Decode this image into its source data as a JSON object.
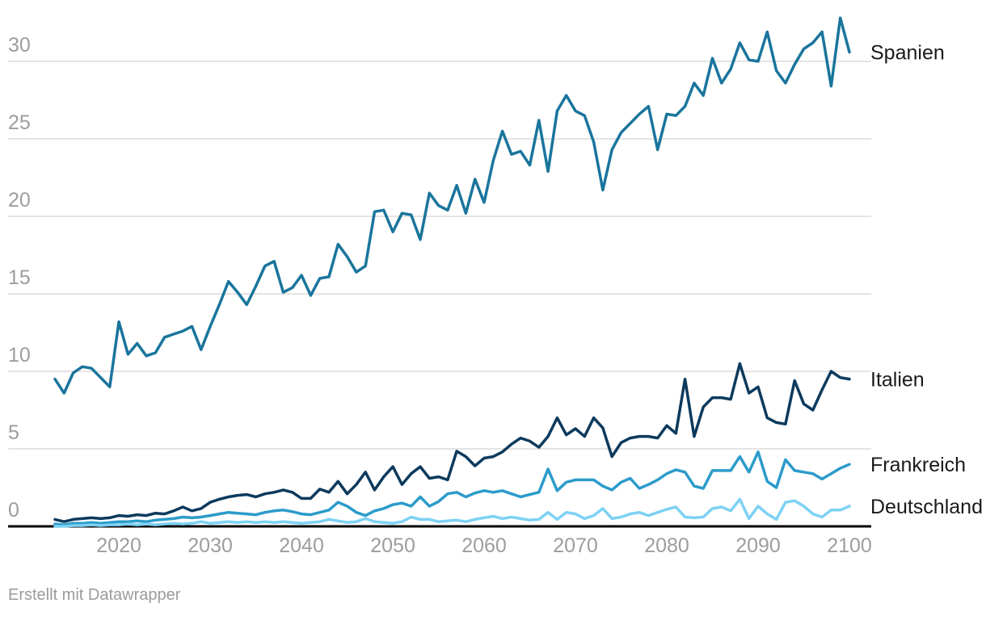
{
  "page": {
    "background": "#ffffff"
  },
  "footer": {
    "text": "Erstellt mit Datawrapper"
  },
  "axes": {
    "y_ticks": [
      0,
      5,
      10,
      15,
      20,
      25,
      30
    ],
    "x_ticks": [
      2020,
      2030,
      2040,
      2050,
      2060,
      2070,
      2080,
      2090,
      2100
    ],
    "tick_color": "#9d9d9d",
    "grid_color": "#e4e4e4",
    "baseline_color": "#000000",
    "series_label_color": "#1a1a1a"
  },
  "chart_data": {
    "type": "line",
    "title": "",
    "xlabel": "",
    "ylabel": "",
    "grid": "horizontal",
    "legend_position": "right-edge-direct-labels",
    "xlim": [
      2013,
      2100
    ],
    "ylim": [
      0,
      33.5
    ],
    "x": [
      2013,
      2014,
      2015,
      2016,
      2017,
      2018,
      2019,
      2020,
      2021,
      2022,
      2023,
      2024,
      2025,
      2026,
      2027,
      2028,
      2029,
      2030,
      2031,
      2032,
      2033,
      2034,
      2035,
      2036,
      2037,
      2038,
      2039,
      2040,
      2041,
      2042,
      2043,
      2044,
      2045,
      2046,
      2047,
      2048,
      2049,
      2050,
      2051,
      2052,
      2053,
      2054,
      2055,
      2056,
      2057,
      2058,
      2059,
      2060,
      2061,
      2062,
      2063,
      2064,
      2065,
      2066,
      2067,
      2068,
      2069,
      2070,
      2071,
      2072,
      2073,
      2074,
      2075,
      2076,
      2077,
      2078,
      2079,
      2080,
      2081,
      2082,
      2083,
      2084,
      2085,
      2086,
      2087,
      2088,
      2089,
      2090,
      2091,
      2092,
      2093,
      2094,
      2095,
      2096,
      2097,
      2098,
      2099,
      2100
    ],
    "series": [
      {
        "name": "Spanien",
        "color": "#1a759c",
        "values": [
          9.5,
          8.6,
          9.9,
          10.3,
          10.2,
          9.6,
          9.0,
          13.2,
          11.1,
          11.8,
          11.0,
          11.2,
          12.2,
          12.4,
          12.6,
          12.9,
          11.4,
          12.9,
          14.3,
          15.8,
          15.1,
          14.3,
          15.5,
          16.8,
          17.1,
          15.1,
          15.4,
          16.2,
          14.9,
          16.0,
          16.1,
          18.2,
          17.4,
          16.4,
          16.8,
          20.3,
          20.4,
          19.0,
          20.2,
          20.1,
          18.5,
          21.5,
          20.7,
          20.4,
          22.0,
          20.2,
          22.4,
          20.9,
          23.6,
          25.5,
          24.0,
          24.2,
          23.3,
          26.2,
          22.9,
          26.8,
          27.8,
          26.8,
          26.5,
          24.8,
          21.7,
          24.3,
          25.4,
          26.0,
          26.6,
          27.1,
          24.3,
          26.6,
          26.5,
          27.1,
          28.6,
          27.8,
          30.2,
          28.6,
          29.5,
          31.2,
          30.1,
          30.0,
          31.9,
          29.4,
          28.6,
          29.8,
          30.8,
          31.2,
          31.9,
          28.4,
          32.8,
          30.6
        ]
      },
      {
        "name": "Italien",
        "color": "#0c3a5d",
        "values": [
          0.45,
          0.3,
          0.45,
          0.5,
          0.55,
          0.5,
          0.55,
          0.7,
          0.65,
          0.75,
          0.7,
          0.85,
          0.8,
          1.0,
          1.25,
          1.0,
          1.15,
          1.55,
          1.75,
          1.9,
          2.0,
          2.05,
          1.9,
          2.1,
          2.2,
          2.35,
          2.2,
          1.8,
          1.8,
          2.4,
          2.2,
          2.9,
          2.1,
          2.7,
          3.5,
          2.35,
          3.2,
          3.85,
          2.7,
          3.4,
          3.85,
          3.1,
          3.2,
          3.0,
          4.85,
          4.5,
          3.9,
          4.4,
          4.5,
          4.8,
          5.3,
          5.7,
          5.5,
          5.1,
          5.8,
          7.0,
          5.9,
          6.3,
          5.8,
          7.0,
          6.35,
          4.5,
          5.4,
          5.7,
          5.8,
          5.8,
          5.7,
          6.5,
          6.0,
          9.5,
          5.8,
          7.7,
          8.3,
          8.3,
          8.2,
          10.5,
          8.6,
          9.0,
          7.0,
          6.7,
          6.6,
          9.4,
          7.9,
          7.5,
          8.8,
          10.0,
          9.6,
          9.5
        ]
      },
      {
        "name": "Frankreich",
        "color": "#2b9bca",
        "values": [
          0.15,
          0.1,
          0.2,
          0.2,
          0.25,
          0.2,
          0.25,
          0.3,
          0.3,
          0.35,
          0.3,
          0.4,
          0.45,
          0.5,
          0.6,
          0.55,
          0.6,
          0.7,
          0.8,
          0.9,
          0.85,
          0.8,
          0.75,
          0.9,
          1.0,
          1.05,
          0.95,
          0.8,
          0.75,
          0.9,
          1.05,
          1.55,
          1.3,
          0.9,
          0.7,
          1.0,
          1.15,
          1.4,
          1.5,
          1.3,
          1.9,
          1.3,
          1.6,
          2.1,
          2.2,
          1.9,
          2.15,
          2.3,
          2.2,
          2.3,
          2.1,
          1.9,
          2.05,
          2.2,
          3.7,
          2.3,
          2.85,
          3.0,
          3.0,
          3.0,
          2.6,
          2.35,
          2.85,
          3.1,
          2.45,
          2.7,
          3.0,
          3.4,
          3.65,
          3.5,
          2.6,
          2.45,
          3.6,
          3.6,
          3.6,
          4.5,
          3.5,
          4.8,
          2.9,
          2.5,
          4.3,
          3.6,
          3.5,
          3.4,
          3.05,
          3.4,
          3.75,
          4.0
        ]
      },
      {
        "name": "Deutschland",
        "color": "#7dd1f4",
        "values": [
          0.0,
          0.0,
          0.05,
          0.05,
          0.1,
          0.05,
          0.1,
          0.1,
          0.15,
          0.1,
          0.15,
          0.1,
          0.15,
          0.2,
          0.15,
          0.2,
          0.3,
          0.2,
          0.25,
          0.3,
          0.25,
          0.3,
          0.25,
          0.3,
          0.25,
          0.3,
          0.25,
          0.2,
          0.25,
          0.3,
          0.45,
          0.35,
          0.25,
          0.3,
          0.5,
          0.3,
          0.25,
          0.2,
          0.3,
          0.6,
          0.45,
          0.45,
          0.3,
          0.35,
          0.4,
          0.3,
          0.45,
          0.55,
          0.65,
          0.5,
          0.6,
          0.5,
          0.4,
          0.45,
          0.9,
          0.45,
          0.9,
          0.8,
          0.5,
          0.7,
          1.15,
          0.5,
          0.6,
          0.8,
          0.9,
          0.7,
          0.9,
          1.1,
          1.25,
          0.6,
          0.55,
          0.6,
          1.15,
          1.25,
          1.0,
          1.75,
          0.5,
          1.3,
          0.8,
          0.45,
          1.55,
          1.65,
          1.3,
          0.8,
          0.6,
          1.05,
          1.05,
          1.3
        ]
      }
    ]
  }
}
